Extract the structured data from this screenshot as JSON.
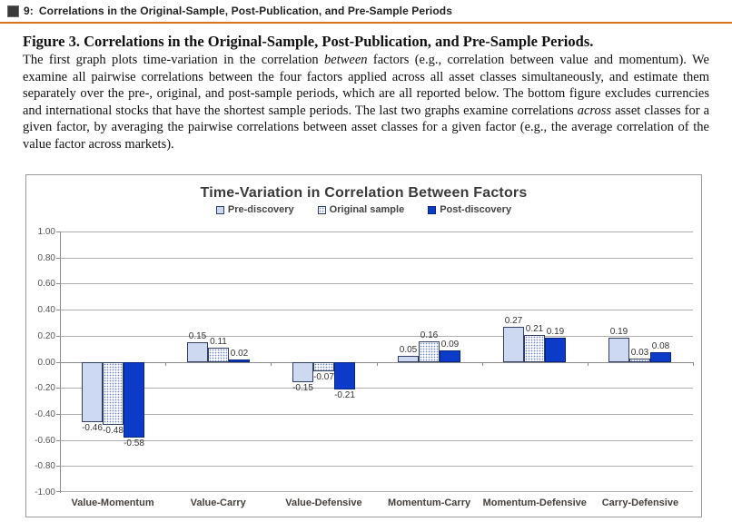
{
  "header": {
    "icon": "figure-icon",
    "label": "9:",
    "title": "Correlations in the Original-Sample, Post-Publication, and Pre-Sample Periods",
    "rule_color": "#d9741e"
  },
  "caption": {
    "heading": "Figure 3. Correlations in the Original-Sample, Post-Publication, and Pre-Sample Periods.",
    "segments": [
      {
        "text": "The first graph plots time-variation in the correlation ",
        "italic": false
      },
      {
        "text": "between",
        "italic": true
      },
      {
        "text": " factors (e.g., correlation between value and momentum). We examine all pairwise correlations between the four factors applied across all asset classes simultaneously, and estimate them separately over the pre-, original, and post-sample periods, which are all reported below. The bottom figure excludes currencies and international stocks that have the shortest sample periods. The last two graphs examine correlations ",
        "italic": false
      },
      {
        "text": "across",
        "italic": true
      },
      {
        "text": " asset classes for a given factor, by averaging the pairwise correlations between asset classes for a given factor (e.g., the average correlation of the value factor across markets).",
        "italic": false
      }
    ]
  },
  "chart_data": {
    "type": "bar",
    "title": "Time-Variation in Correlation Between Factors",
    "categories": [
      "Value-Momentum",
      "Value-Carry",
      "Value-Defensive",
      "Momentum-Carry",
      "Momentum-Defensive",
      "Carry-Defensive"
    ],
    "series": [
      {
        "name": "Pre-discovery",
        "style": "light",
        "values": [
          -0.46,
          0.15,
          -0.15,
          0.05,
          0.27,
          0.19
        ]
      },
      {
        "name": "Original sample",
        "style": "dotted",
        "values": [
          -0.48,
          0.11,
          -0.07,
          0.16,
          0.21,
          0.03
        ]
      },
      {
        "name": "Post-discovery",
        "style": "solid",
        "values": [
          -0.58,
          0.02,
          -0.21,
          0.09,
          0.19,
          0.08
        ]
      }
    ],
    "ylim": [
      -1.0,
      1.0
    ],
    "ytick_step": 0.2,
    "grid": true,
    "legend_position": "top-center",
    "value_labels": true,
    "colors": {
      "pre_discovery_fill": "#ccd9f1",
      "original_sample_dot": "#6b84c4",
      "post_discovery_fill": "#0b3bc8",
      "bar_border": "#333f63",
      "gridline": "#aeaeae",
      "axis": "#8a8a8a",
      "title_text": "#3a3a3a",
      "category_text": "#453f3a"
    }
  }
}
